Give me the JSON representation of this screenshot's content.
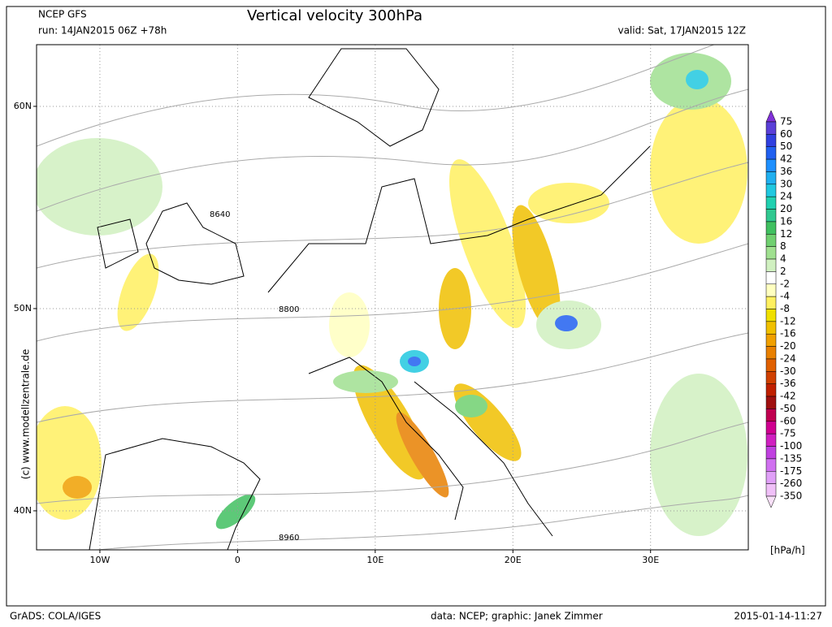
{
  "header": {
    "model": "NCEP GFS",
    "run": "run: 14JAN2015 06Z +78h",
    "title": "Vertical velocity 300hPa",
    "valid": "valid: Sat, 17JAN2015 12Z"
  },
  "map": {
    "lon_lim": [
      -14.6,
      37.1
    ],
    "lat_lim": [
      38.07,
      63.05
    ],
    "lon_ticks": [
      {
        "value": -10,
        "label": "10W"
      },
      0,
      {
        "value": 10,
        "label": "10E"
      },
      {
        "value": 20,
        "label": "20E"
      },
      {
        "value": 30,
        "label": "30E"
      }
    ],
    "lat_ticks": [
      {
        "value": 40,
        "label": "40N"
      },
      {
        "value": 50,
        "label": "50N"
      },
      {
        "value": 60,
        "label": "60N"
      }
    ],
    "contour_labels": [
      "8640",
      "8800",
      "8960"
    ],
    "copyright": "(c) www.modellzentrale.de"
  },
  "colorbar": {
    "levels": [
      75,
      60,
      50,
      42,
      36,
      30,
      24,
      20,
      16,
      12,
      8,
      4,
      2,
      -2,
      -4,
      -8,
      -12,
      -16,
      -20,
      -24,
      -30,
      -36,
      -42,
      -50,
      -60,
      -75,
      -100,
      -135,
      -175,
      -260,
      -350
    ],
    "colors": [
      "#8030d8",
      "#5a3fd8",
      "#3040e0",
      "#2060f0",
      "#1e90ff",
      "#20b0f0",
      "#20c8e0",
      "#20d0b0",
      "#30c890",
      "#40c060",
      "#70d070",
      "#a0e090",
      "#d0f0c0",
      "#ffffff",
      "#ffffc0",
      "#fff060",
      "#f0e000",
      "#f0c000",
      "#f0a000",
      "#e88000",
      "#e06000",
      "#d04000",
      "#c02000",
      "#a01010",
      "#c00050",
      "#d00090",
      "#d020c0",
      "#c040e0",
      "#d070f0",
      "#e0a0f8",
      "#f0c0f8",
      "#f8e0f8"
    ],
    "unit": "[hPa/h]"
  },
  "footer": {
    "software": "GrADS: COLA/IGES",
    "credits": "data: NCEP; graphic: Janek Zimmer",
    "timestamp": "2015-01-14-11:27"
  }
}
